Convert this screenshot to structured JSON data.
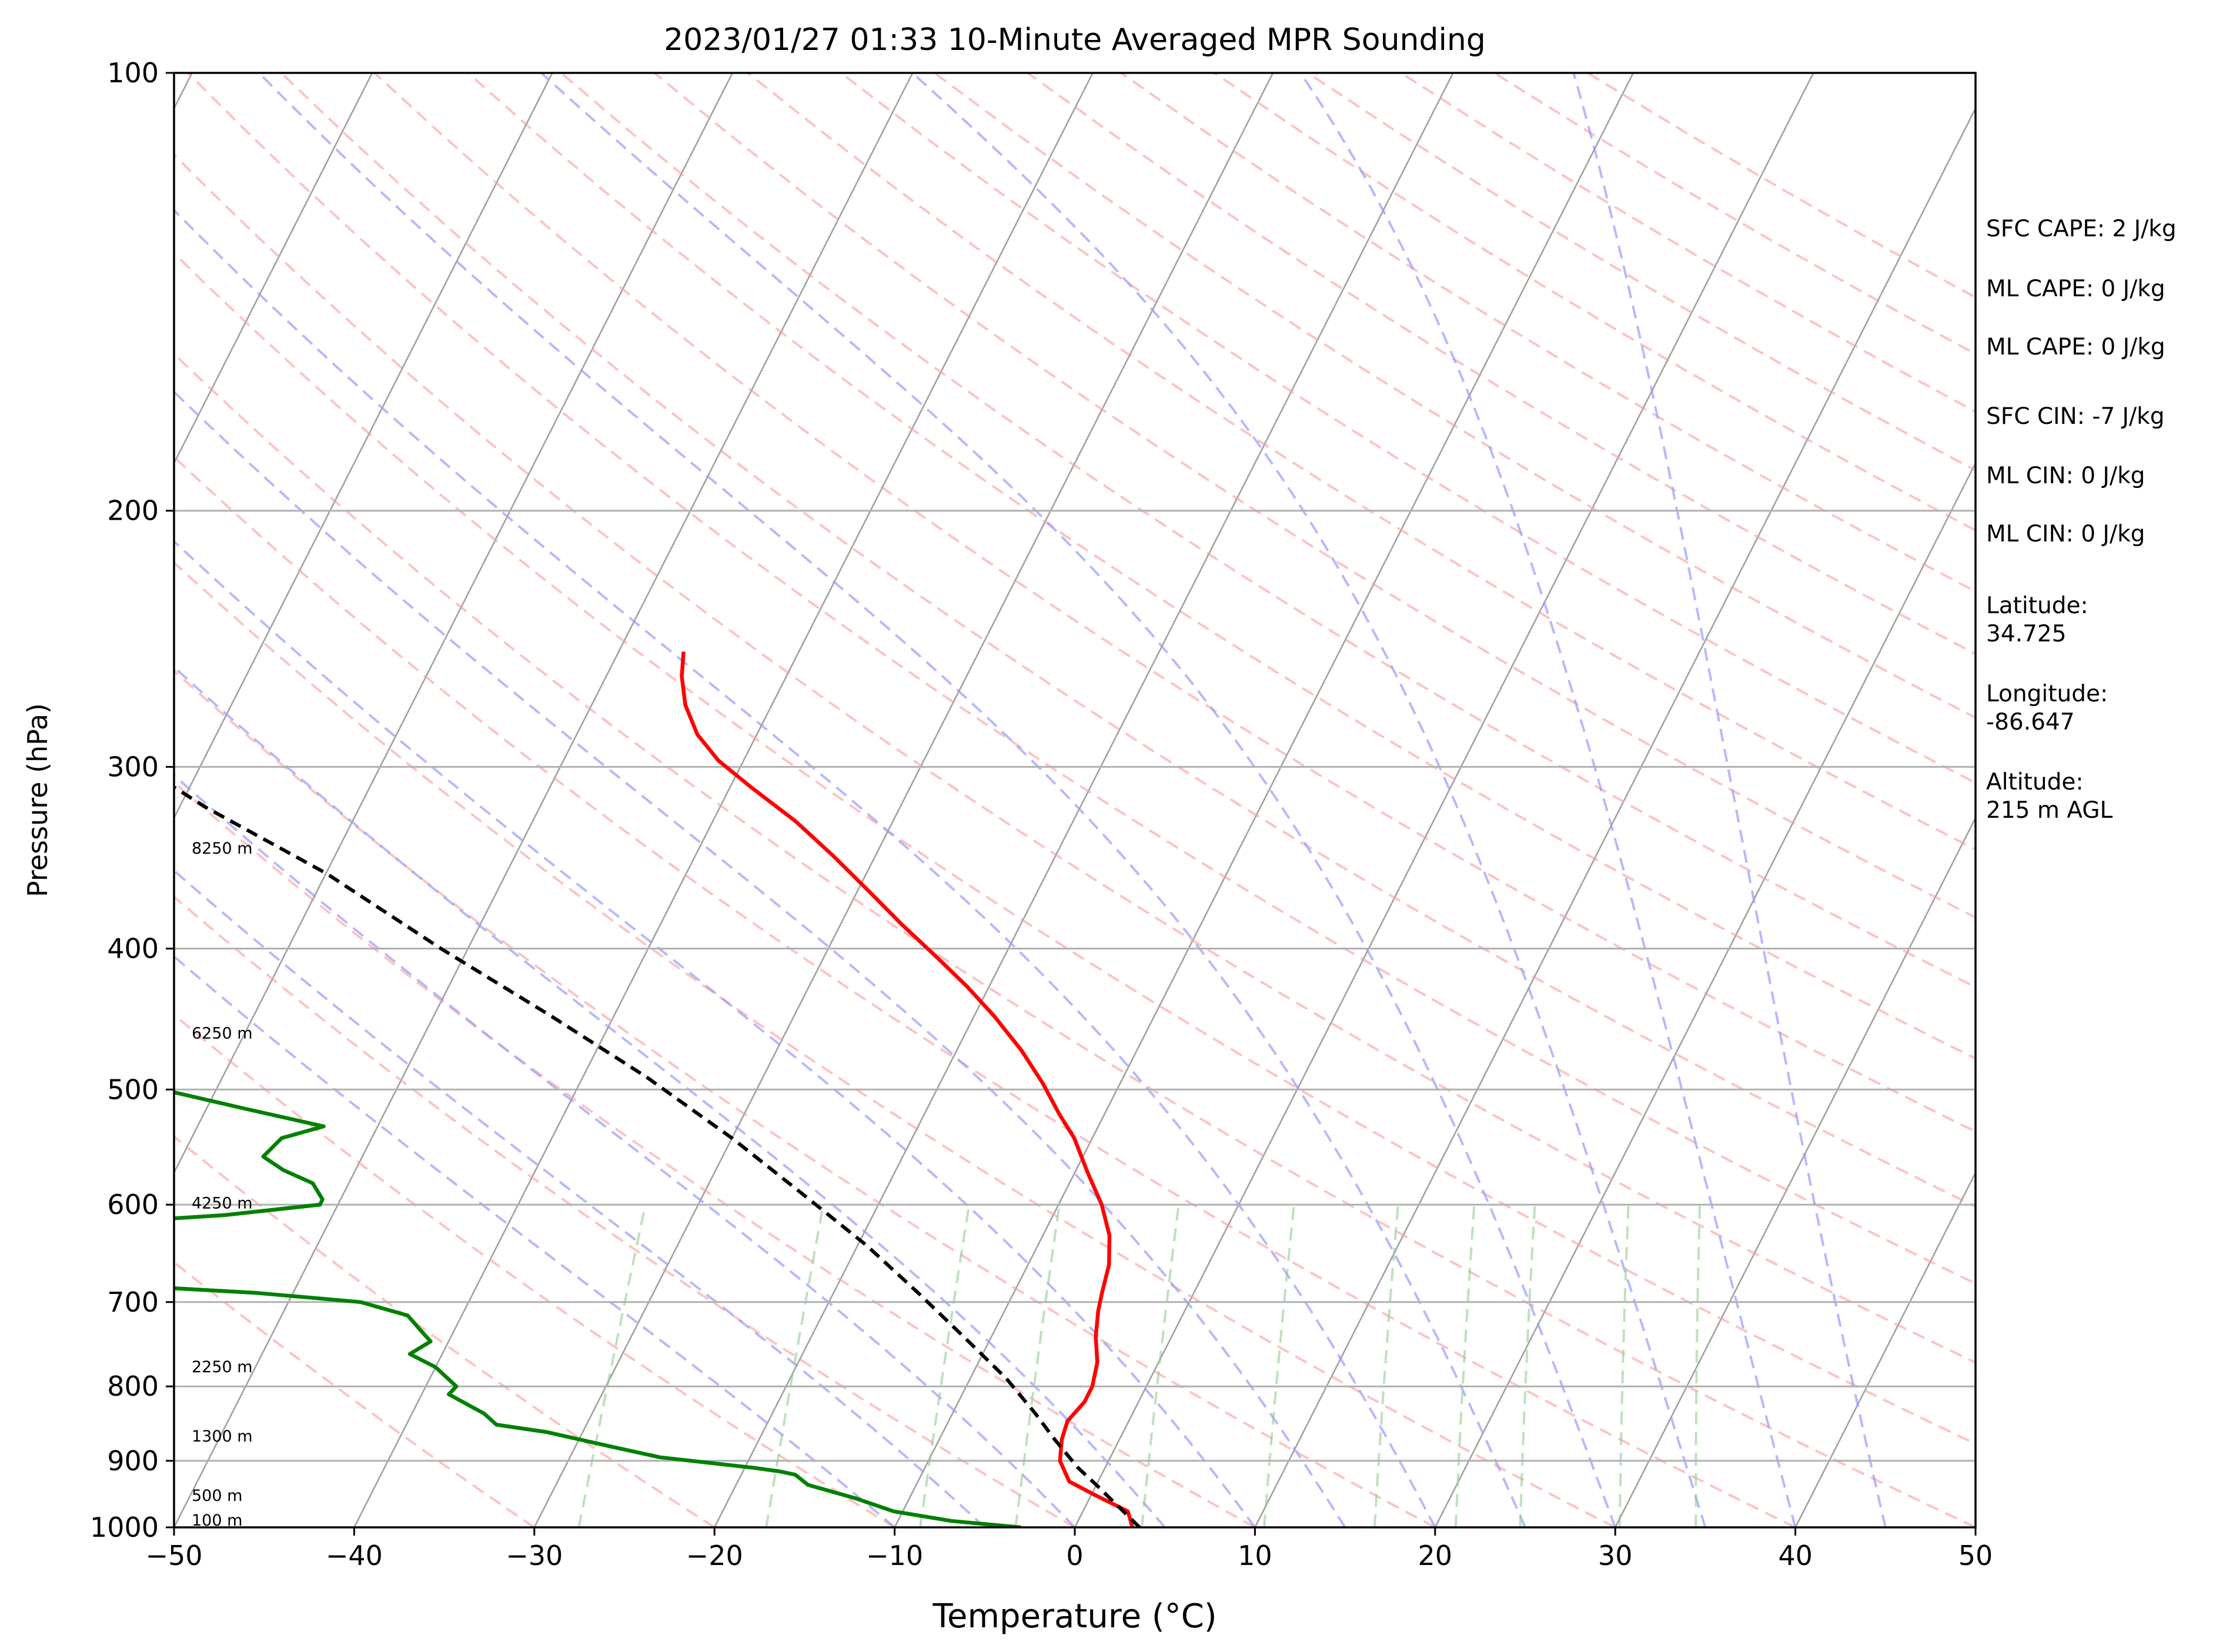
{
  "chart_data": {
    "type": "line",
    "title": "2023/01/27 01:33 10-Minute Averaged MPR Sounding",
    "xlabel": "Temperature (°C)",
    "ylabel": "Pressure (hPa)",
    "xlim": [
      -50,
      50
    ],
    "ylim": [
      1000,
      100
    ],
    "y_scale": "log",
    "x_ticks": [
      -50,
      -40,
      -30,
      -20,
      -10,
      0,
      10,
      20,
      30,
      40,
      50
    ],
    "x_tick_labels": [
      "−50",
      "−40",
      "−30",
      "−20",
      "−10",
      "0",
      "10",
      "20",
      "30",
      "40",
      "50"
    ],
    "y_ticks": [
      1000,
      900,
      800,
      700,
      600,
      500,
      400,
      300,
      200,
      100
    ],
    "y_tick_labels": [
      "1000",
      "900",
      "800",
      "700",
      "600",
      "500",
      "400",
      "300",
      "200",
      "100"
    ],
    "skew": "skew-T log-p",
    "grid": true,
    "colors": {
      "temperature": "#ff0000",
      "dewpoint": "#008000",
      "parcel": "#000000",
      "dry_adiabat": "#ff9999",
      "moist_adiabat": "#9999ff",
      "mixing_ratio": "#8fcf8f",
      "isotherm": "#a0a0a0"
    },
    "series": [
      {
        "key": "temperature",
        "points": [
          [
            3.2,
            1000
          ],
          [
            2.5,
            975
          ],
          [
            0.2,
            950
          ],
          [
            -1.6,
            930
          ],
          [
            -2.7,
            900
          ],
          [
            -3.2,
            870
          ],
          [
            -3.4,
            845
          ],
          [
            -3.0,
            820
          ],
          [
            -3.0,
            800
          ],
          [
            -3.4,
            770
          ],
          [
            -4.2,
            740
          ],
          [
            -4.8,
            710
          ],
          [
            -5.1,
            690
          ],
          [
            -5.5,
            660
          ],
          [
            -6.3,
            630
          ],
          [
            -7.6,
            600
          ],
          [
            -9.3,
            570
          ],
          [
            -11.0,
            540
          ],
          [
            -12.5,
            520
          ],
          [
            -14.3,
            495
          ],
          [
            -16.4,
            470
          ],
          [
            -18.9,
            445
          ],
          [
            -21.2,
            425
          ],
          [
            -23.8,
            405
          ],
          [
            -26.6,
            385
          ],
          [
            -29.4,
            365
          ],
          [
            -32.4,
            345
          ],
          [
            -35.4,
            327
          ],
          [
            -38.8,
            310
          ],
          [
            -41.4,
            297
          ],
          [
            -43.3,
            285
          ],
          [
            -44.8,
            272
          ],
          [
            -45.8,
            260
          ],
          [
            -46.4,
            250
          ]
        ]
      },
      {
        "key": "dewpoint",
        "points": [
          [
            -3.0,
            1000
          ],
          [
            -7.0,
            990
          ],
          [
            -10.5,
            975
          ],
          [
            -13.0,
            955
          ],
          [
            -16.0,
            935
          ],
          [
            -17.0,
            920
          ],
          [
            -18.0,
            915
          ],
          [
            -19.5,
            910
          ],
          [
            -25.0,
            895
          ],
          [
            -28.0,
            880
          ],
          [
            -32.0,
            860
          ],
          [
            -35.0,
            850
          ],
          [
            -36.0,
            835
          ],
          [
            -37.0,
            825
          ],
          [
            -38.5,
            810
          ],
          [
            -38.3,
            800
          ],
          [
            -39.0,
            790
          ],
          [
            -40.0,
            776
          ],
          [
            -41.8,
            760
          ],
          [
            -41.0,
            745
          ],
          [
            -42.0,
            730
          ],
          [
            -43.0,
            715
          ],
          [
            -46.0,
            700
          ],
          [
            -52.0,
            690
          ],
          [
            -66.0,
            675
          ],
          [
            -84.0,
            660
          ],
          [
            -100.0,
            645
          ],
          [
            -100.0,
            635
          ],
          [
            -80.0,
            625
          ],
          [
            -63.0,
            618
          ],
          [
            -56.0,
            610
          ],
          [
            -51.0,
            600
          ],
          [
            -51.0,
            595
          ],
          [
            -52.0,
            580
          ],
          [
            -54.0,
            568
          ],
          [
            -55.5,
            556
          ],
          [
            -55.0,
            540
          ],
          [
            -53.0,
            530
          ],
          [
            -58.0,
            515
          ],
          [
            -63.0,
            500
          ],
          [
            -65.5,
            490
          ],
          [
            -66.0,
            480
          ],
          [
            -66.5,
            470
          ],
          [
            -67.5,
            460
          ],
          [
            -72.0,
            446
          ],
          [
            -72.0,
            438
          ],
          [
            -71.5,
            430
          ],
          [
            -73.5,
            420
          ],
          [
            -76.5,
            400
          ],
          [
            -76.5,
            390
          ],
          [
            -74.0,
            380
          ],
          [
            -75.5,
            365
          ],
          [
            -82.0,
            352
          ],
          [
            -97.0,
            343
          ],
          [
            -98.0,
            340
          ],
          [
            -95.0,
            337
          ],
          [
            -92.0,
            333
          ],
          [
            -98.0,
            322
          ],
          [
            -100.0,
            318
          ],
          [
            -100.0,
            264
          ],
          [
            -95.0,
            264
          ]
        ]
      },
      {
        "key": "parcel",
        "points": [
          [
            3.6,
            1000
          ],
          [
            0.0,
            935
          ],
          [
            -1.5,
            910
          ],
          [
            -3.6,
            870
          ],
          [
            -5.4,
            835
          ],
          [
            -8.0,
            790
          ],
          [
            -11.5,
            740
          ],
          [
            -15.3,
            690
          ],
          [
            -19.5,
            640
          ],
          [
            -24.5,
            590
          ],
          [
            -30.0,
            540
          ],
          [
            -36.5,
            490
          ],
          [
            -43.5,
            445
          ],
          [
            -51.5,
            400
          ],
          [
            -60.0,
            355
          ],
          [
            -68.5,
            320
          ],
          [
            -77.0,
            285
          ],
          [
            -79.0,
            275
          ]
        ]
      }
    ],
    "height_labels": [
      {
        "text": "100 m",
        "p": 988
      },
      {
        "text": "500 m",
        "p": 950
      },
      {
        "text": "1300 m",
        "p": 865
      },
      {
        "text": "2250 m",
        "p": 775
      },
      {
        "text": "4250 m",
        "p": 598
      },
      {
        "text": "6250 m",
        "p": 457
      },
      {
        "text": "8250 m",
        "p": 341
      }
    ],
    "side_info": [
      "SFC CAPE: 2 J/kg",
      "ML CAPE: 0 J/kg",
      "ML CAPE: 0 J/kg",
      "SFC CIN: -7 J/kg",
      "ML CIN: 0 J/kg",
      "ML CIN: 0 J/kg",
      "Latitude:",
      "34.725",
      "Longitude:",
      "-86.647",
      "Altitude:",
      "215 m AGL"
    ]
  }
}
